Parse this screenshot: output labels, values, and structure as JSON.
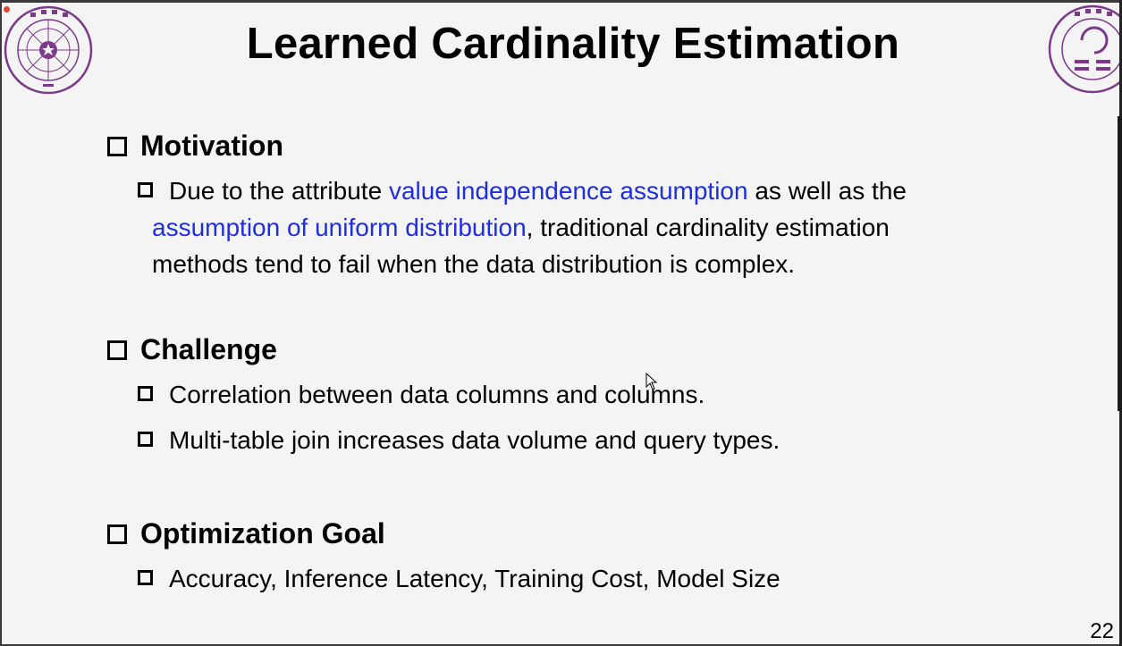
{
  "slide": {
    "title": "Learned Cardinality Estimation",
    "page_number": "22",
    "sections": [
      {
        "heading": "Motivation",
        "bullets": [
          {
            "parts": [
              {
                "text": "Due to the attribute ",
                "highlight": false
              },
              {
                "text": "value independence assumption",
                "highlight": true
              },
              {
                "text": " as well as the",
                "highlight": false
              }
            ],
            "line2": [
              {
                "text": "assumption of uniform distribution",
                "highlight": true
              },
              {
                "text": ", traditional cardinality estimation",
                "highlight": false
              }
            ],
            "line3": [
              {
                "text": "methods tend to fail when the data distribution is complex.",
                "highlight": false
              }
            ]
          }
        ]
      },
      {
        "heading": "Challenge",
        "bullets": [
          "Correlation between data columns and columns.",
          "Multi-table join increases data volume and query types."
        ]
      },
      {
        "heading": "Optimization Goal",
        "bullets": [
          "Accuracy, Inference Latency, Training Cost, Model Size"
        ]
      }
    ]
  },
  "colors": {
    "highlight": "#1f2fe0",
    "logo_purple": "#7b3a8a",
    "background": "#f4f4f4"
  },
  "icons": {
    "left_logo": "tsinghua-university-seal",
    "right_logo": "tsinghua-cs-logo",
    "bullet": "hollow-square-bullet",
    "pointer": "mouse-cursor",
    "recording_indicator": "red-dot"
  },
  "logo_text": {
    "left": "TSINGHUA UNIVERSITY 1911",
    "right": "TSINGHUA UNIVERSITY CS 1958"
  }
}
